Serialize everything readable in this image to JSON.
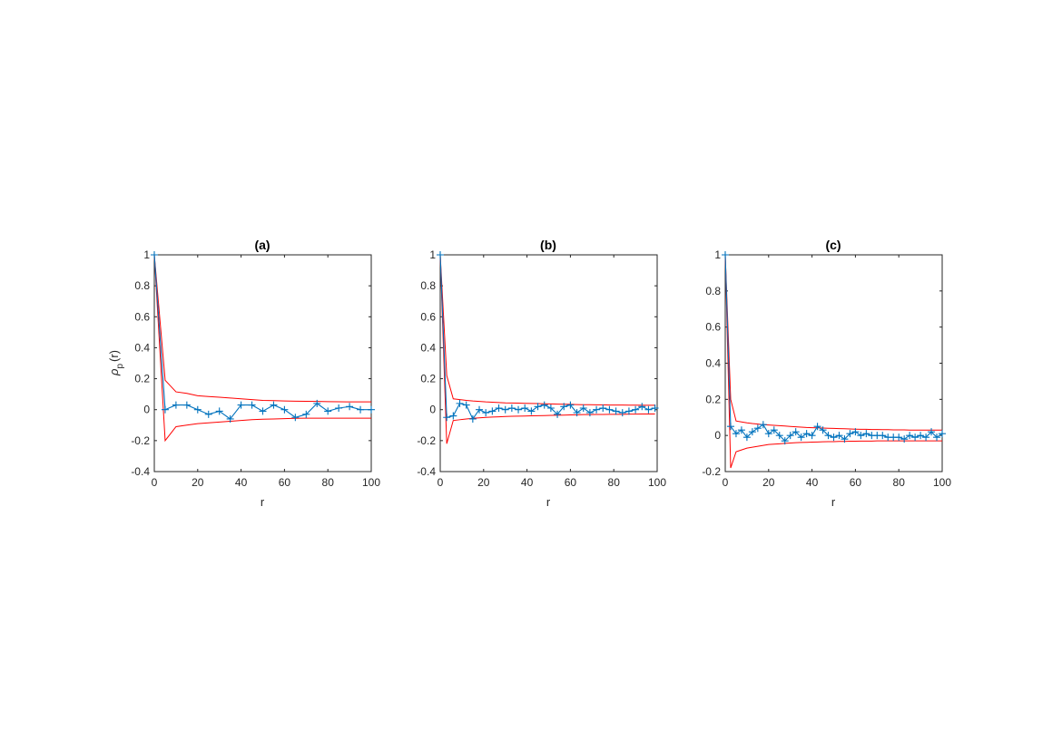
{
  "chart_data": [
    {
      "type": "line",
      "title": "(a)",
      "xlabel": "r",
      "ylabel": "ρ_p(r)",
      "ylabel_main": "ρ",
      "ylabel_sub": "p",
      "ylabel_tail": "(r)",
      "xlim": [
        0,
        100
      ],
      "ylim": [
        -0.4,
        1
      ],
      "xticks": [
        0,
        20,
        40,
        60,
        80,
        100
      ],
      "yticks": [
        -0.4,
        -0.2,
        0,
        0.2,
        0.4,
        0.6,
        0.8,
        1
      ],
      "xtick_labels": [
        "0",
        "20",
        "40",
        "60",
        "80",
        "100"
      ],
      "ytick_labels": [
        "-0.4",
        "-0.2",
        "0",
        "0.2",
        "0.4",
        "0.6",
        "0.8",
        "1"
      ],
      "grid": false,
      "series": [
        {
          "role": "acf",
          "color": "#0072bd",
          "marker": "plus",
          "x": [
            0,
            5,
            10,
            15,
            20,
            25,
            30,
            35,
            40,
            45,
            50,
            55,
            60,
            65,
            70,
            75,
            80,
            85,
            90,
            95,
            100
          ],
          "y": [
            1,
            0.0,
            0.03,
            0.03,
            0.0,
            -0.03,
            -0.01,
            -0.06,
            0.03,
            0.03,
            -0.01,
            0.03,
            0.0,
            -0.05,
            -0.03,
            0.04,
            -0.01,
            0.01,
            0.02,
            0.0,
            0.0
          ]
        },
        {
          "role": "upper-bound",
          "color": "#ff0000",
          "x": [
            0,
            5,
            10,
            15,
            20,
            25,
            30,
            35,
            40,
            45,
            50,
            55,
            60,
            65,
            70,
            75,
            80,
            85,
            90,
            95,
            100
          ],
          "y": [
            1,
            0.19,
            0.115,
            0.105,
            0.09,
            0.085,
            0.08,
            0.075,
            0.07,
            0.065,
            0.06,
            0.058,
            0.056,
            0.055,
            0.054,
            0.053,
            0.052,
            0.051,
            0.05,
            0.05,
            0.05
          ]
        },
        {
          "role": "lower-bound",
          "color": "#ff0000",
          "x": [
            0,
            5,
            10,
            15,
            20,
            25,
            30,
            35,
            40,
            45,
            50,
            55,
            60,
            65,
            70,
            75,
            80,
            85,
            90,
            95,
            100
          ],
          "y": [
            1,
            -0.2,
            -0.11,
            -0.1,
            -0.09,
            -0.085,
            -0.08,
            -0.075,
            -0.07,
            -0.065,
            -0.062,
            -0.06,
            -0.058,
            -0.056,
            -0.055,
            -0.055,
            -0.055,
            -0.055,
            -0.055,
            -0.055,
            -0.055
          ]
        }
      ]
    },
    {
      "type": "line",
      "title": "(b)",
      "xlabel": "r",
      "ylabel": "",
      "xlim": [
        0,
        100
      ],
      "ylim": [
        -0.4,
        1
      ],
      "xticks": [
        0,
        20,
        40,
        60,
        80,
        100
      ],
      "yticks": [
        -0.4,
        -0.2,
        0,
        0.2,
        0.4,
        0.6,
        0.8,
        1
      ],
      "xtick_labels": [
        "0",
        "20",
        "40",
        "60",
        "80",
        "100"
      ],
      "ytick_labels": [
        "-0.4",
        "-0.2",
        "0",
        "0.2",
        "0.4",
        "0.6",
        "0.8",
        "1"
      ],
      "grid": false,
      "series": [
        {
          "role": "acf",
          "color": "#0072bd",
          "marker": "plus",
          "x": [
            0,
            3,
            6,
            9,
            12,
            15,
            18,
            21,
            24,
            27,
            30,
            33,
            36,
            39,
            42,
            45,
            48,
            51,
            54,
            57,
            60,
            63,
            66,
            69,
            72,
            75,
            78,
            81,
            84,
            87,
            90,
            93,
            96,
            99
          ],
          "y": [
            1,
            -0.05,
            -0.04,
            0.04,
            0.03,
            -0.06,
            0.0,
            -0.02,
            -0.01,
            0.01,
            0.0,
            0.01,
            0.0,
            0.01,
            -0.01,
            0.02,
            0.03,
            0.01,
            -0.03,
            0.02,
            0.03,
            -0.02,
            0.01,
            -0.02,
            0.0,
            0.01,
            0.0,
            -0.01,
            -0.02,
            -0.01,
            0.0,
            0.02,
            0.0,
            0.01
          ]
        },
        {
          "role": "upper-bound",
          "color": "#ff0000",
          "x": [
            0,
            3,
            6,
            9,
            12,
            15,
            18,
            21,
            24,
            27,
            30,
            33,
            36,
            39,
            42,
            45,
            48,
            51,
            54,
            57,
            60,
            63,
            66,
            69,
            72,
            75,
            78,
            81,
            84,
            87,
            90,
            93,
            96,
            99
          ],
          "y": [
            1,
            0.22,
            0.07,
            0.065,
            0.06,
            0.056,
            0.053,
            0.05,
            0.048,
            0.046,
            0.044,
            0.043,
            0.042,
            0.041,
            0.04,
            0.039,
            0.038,
            0.037,
            0.036,
            0.035,
            0.034,
            0.033,
            0.032,
            0.032,
            0.031,
            0.031,
            0.03,
            0.03,
            0.03,
            0.029,
            0.029,
            0.028,
            0.028,
            0.028
          ]
        },
        {
          "role": "lower-bound",
          "color": "#ff0000",
          "x": [
            0,
            3,
            6,
            9,
            12,
            15,
            18,
            21,
            24,
            27,
            30,
            33,
            36,
            39,
            42,
            45,
            48,
            51,
            54,
            57,
            60,
            63,
            66,
            69,
            72,
            75,
            78,
            81,
            84,
            87,
            90,
            93,
            96,
            99
          ],
          "y": [
            1,
            -0.22,
            -0.07,
            -0.065,
            -0.06,
            -0.056,
            -0.053,
            -0.05,
            -0.048,
            -0.046,
            -0.044,
            -0.043,
            -0.042,
            -0.041,
            -0.04,
            -0.039,
            -0.038,
            -0.037,
            -0.036,
            -0.035,
            -0.034,
            -0.033,
            -0.032,
            -0.032,
            -0.031,
            -0.031,
            -0.03,
            -0.03,
            -0.03,
            -0.029,
            -0.029,
            -0.028,
            -0.028,
            -0.028
          ]
        }
      ]
    },
    {
      "type": "line",
      "title": "(c)",
      "xlabel": "r",
      "ylabel": "",
      "xlim": [
        0,
        100
      ],
      "ylim": [
        -0.2,
        1
      ],
      "xticks": [
        0,
        20,
        40,
        60,
        80,
        100
      ],
      "yticks": [
        -0.2,
        0,
        0.2,
        0.4,
        0.6,
        0.8,
        1
      ],
      "xtick_labels": [
        "0",
        "20",
        "40",
        "60",
        "80",
        "100"
      ],
      "ytick_labels": [
        "-0.2",
        "0",
        "0.2",
        "0.4",
        "0.6",
        "0.8",
        "1"
      ],
      "grid": false,
      "series": [
        {
          "role": "acf",
          "color": "#0072bd",
          "marker": "plus",
          "x": [
            0,
            2.5,
            5,
            7.5,
            10,
            12.5,
            15,
            17.5,
            20,
            22.5,
            25,
            27.5,
            30,
            32.5,
            35,
            37.5,
            40,
            42.5,
            45,
            47.5,
            50,
            52.5,
            55,
            57.5,
            60,
            62.5,
            65,
            67.5,
            70,
            72.5,
            75,
            77.5,
            80,
            82.5,
            85,
            87.5,
            90,
            92.5,
            95,
            97.5,
            100
          ],
          "y": [
            1,
            0.05,
            0.01,
            0.03,
            -0.01,
            0.02,
            0.04,
            0.06,
            0.01,
            0.03,
            0.0,
            -0.03,
            0.0,
            0.02,
            -0.01,
            0.01,
            0.0,
            0.05,
            0.03,
            0.0,
            -0.01,
            0.0,
            -0.02,
            0.01,
            0.02,
            0.0,
            0.01,
            0.0,
            0.0,
            0.0,
            -0.01,
            -0.01,
            -0.01,
            -0.02,
            0.0,
            -0.01,
            0.0,
            -0.01,
            0.02,
            -0.01,
            0.01
          ]
        },
        {
          "role": "upper-bound",
          "color": "#ff0000",
          "x": [
            0,
            2.5,
            5,
            7.5,
            10,
            12.5,
            15,
            17.5,
            20,
            22.5,
            25,
            27.5,
            30,
            32.5,
            35,
            37.5,
            40,
            42.5,
            45,
            47.5,
            50,
            52.5,
            55,
            57.5,
            60,
            62.5,
            65,
            67.5,
            70,
            72.5,
            75,
            77.5,
            80,
            82.5,
            85,
            87.5,
            90,
            92.5,
            95,
            97.5,
            100
          ],
          "y": [
            1,
            0.2,
            0.08,
            0.075,
            0.07,
            0.066,
            0.063,
            0.06,
            0.058,
            0.056,
            0.054,
            0.052,
            0.05,
            0.048,
            0.046,
            0.044,
            0.043,
            0.042,
            0.041,
            0.04,
            0.039,
            0.038,
            0.037,
            0.036,
            0.035,
            0.034,
            0.034,
            0.033,
            0.033,
            0.032,
            0.032,
            0.031,
            0.031,
            0.031,
            0.03,
            0.03,
            0.03,
            0.03,
            0.03,
            0.03,
            0.03
          ]
        },
        {
          "role": "lower-bound",
          "color": "#ff0000",
          "x": [
            0,
            2.5,
            5,
            7.5,
            10,
            12.5,
            15,
            17.5,
            20,
            22.5,
            25,
            27.5,
            30,
            32.5,
            35,
            37.5,
            40,
            42.5,
            45,
            47.5,
            50,
            52.5,
            55,
            57.5,
            60,
            62.5,
            65,
            67.5,
            70,
            72.5,
            75,
            77.5,
            80,
            82.5,
            85,
            87.5,
            90,
            92.5,
            95,
            97.5,
            100
          ],
          "y": [
            1,
            -0.18,
            -0.09,
            -0.08,
            -0.07,
            -0.065,
            -0.06,
            -0.055,
            -0.05,
            -0.048,
            -0.046,
            -0.044,
            -0.042,
            -0.04,
            -0.039,
            -0.038,
            -0.037,
            -0.036,
            -0.035,
            -0.034,
            -0.034,
            -0.033,
            -0.033,
            -0.032,
            -0.032,
            -0.031,
            -0.031,
            -0.031,
            -0.03,
            -0.03,
            -0.03,
            -0.03,
            -0.03,
            -0.03,
            -0.03,
            -0.03,
            -0.03,
            -0.03,
            -0.03,
            -0.03,
            -0.03
          ]
        }
      ]
    }
  ]
}
